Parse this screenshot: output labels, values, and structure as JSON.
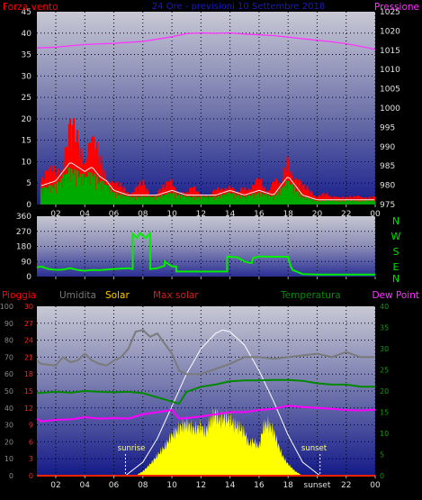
{
  "colors": {
    "wind": "#ff0000",
    "gust": "#ff0000",
    "wind_avg": "#00aa00",
    "pressure": "#ff33ff",
    "direction": "#00ee00",
    "rain": "#ff0000",
    "humidity": "#7a7a7a",
    "solar": "#ffff00",
    "max_solar": "#ffffff",
    "temperature": "#008800",
    "dewpoint": "#ff00ff",
    "grid": "#000000",
    "axis_text": "#d8d8d8"
  },
  "panel1": {
    "title": "24 Ore - previsioni 10 Settembre 2018",
    "left_label": "Forza vento",
    "right_label": "Pressione",
    "left_ticks": [
      "0",
      "5",
      "10",
      "15",
      "20",
      "25",
      "30",
      "35",
      "40",
      "45"
    ],
    "right_ticks": [
      "975",
      "980",
      "985",
      "990",
      "995",
      "1000",
      "1005",
      "1010",
      "1015",
      "1020",
      "1025"
    ],
    "x_ticks": [
      "02",
      "04",
      "06",
      "08",
      "10",
      "12",
      "14",
      "16",
      "18",
      "20",
      "22",
      "00"
    ]
  },
  "panel2": {
    "left_ticks": [
      "0",
      "90",
      "180",
      "270",
      "360"
    ],
    "compass_letters": [
      "N",
      "W",
      "S",
      "E",
      "N"
    ]
  },
  "panel3": {
    "labels": {
      "rain": "Pioggia",
      "humidity": "Umidita",
      "solar": "Solar",
      "max_solar": "Max solar",
      "temperature": "Temperatura",
      "dewpoint": "Dew Point"
    },
    "hum_ticks": [
      "0",
      "10",
      "20",
      "30",
      "40",
      "50",
      "60",
      "70",
      "80",
      "90",
      "100"
    ],
    "rain_ticks": [
      "0",
      "3",
      "6",
      "9",
      "12",
      "15",
      "18",
      "21",
      "24",
      "27",
      "30"
    ],
    "temp_ticks": [
      "0",
      "5",
      "10",
      "15",
      "20",
      "25",
      "30",
      "35",
      "40"
    ],
    "x_ticks": [
      "02",
      "04",
      "06",
      "08",
      "10",
      "12",
      "14",
      "16",
      "18",
      "sunset",
      "22",
      "00"
    ],
    "sunrise_label": "sunrise",
    "sunset_label": "sunset"
  },
  "chart_data": [
    {
      "type": "area",
      "title": "24 Ore - previsioni 10 Settembre 2018",
      "ylabel": "Forza vento",
      "ylabel_right": "Pressione",
      "x_unit": "hour",
      "xlim": [
        0.7,
        24
      ],
      "ylim": [
        0,
        45
      ],
      "ylim_right": [
        975,
        1025
      ],
      "grid": true,
      "series": [
        {
          "name": "Forza vento",
          "kind": "gust",
          "x": [
            1,
            2,
            2.5,
            3,
            3.3,
            3.6,
            4,
            4.4,
            4.8,
            5,
            5.5,
            6,
            6.5,
            7,
            7.5,
            8,
            8.5,
            9,
            9.5,
            10,
            10.5,
            11,
            11.5,
            12,
            12.5,
            13,
            13.5,
            14,
            14.5,
            15,
            15.5,
            16,
            16.5,
            17,
            17.5,
            18,
            18.5,
            19,
            19.5,
            20,
            20.5,
            21,
            21.5,
            22,
            22.5,
            23,
            23.5,
            24
          ],
          "values": [
            8,
            10,
            14,
            22,
            20,
            18,
            16,
            19,
            15,
            13,
            10,
            6,
            5,
            4,
            5,
            6,
            3,
            4,
            5,
            7,
            4,
            3,
            5,
            4,
            2,
            4,
            6,
            5,
            3,
            6,
            5,
            7,
            4,
            8,
            5,
            14,
            9,
            5,
            4,
            3,
            3,
            2,
            3,
            2,
            2,
            3,
            2,
            2
          ]
        },
        {
          "name": "",
          "kind": "avg",
          "x": [
            1,
            2,
            2.5,
            3,
            3.5,
            4,
            4.5,
            5,
            5.5,
            6,
            7,
            8,
            9,
            10,
            11,
            12,
            13,
            14,
            15,
            16,
            17,
            18,
            18.5,
            19,
            20,
            21,
            22,
            23,
            24
          ],
          "values": [
            4,
            5,
            7,
            9,
            8,
            7,
            8,
            6,
            5,
            3,
            2,
            2,
            2,
            3,
            2,
            2,
            2,
            3,
            2,
            3,
            2,
            6,
            4,
            2,
            1,
            1,
            1,
            1,
            1
          ]
        },
        {
          "name": "Pressione",
          "axis": "right",
          "x": [
            0.7,
            2,
            4,
            6,
            8,
            10,
            11,
            12,
            13,
            14,
            15,
            16,
            17,
            18,
            19,
            20,
            21,
            22,
            23,
            24
          ],
          "values": [
            1015.6,
            1015.8,
            1016.5,
            1016.8,
            1017.3,
            1018.5,
            1019.3,
            1019.5,
            1019.4,
            1019.5,
            1019.2,
            1019.0,
            1018.8,
            1018.4,
            1018.0,
            1017.6,
            1017.2,
            1016.7,
            1016.0,
            1015.2
          ]
        }
      ]
    },
    {
      "type": "line",
      "title": "",
      "x_unit": "hour",
      "xlim": [
        0.7,
        24
      ],
      "ylim": [
        0,
        360
      ],
      "series": [
        {
          "name": "",
          "x": [
            0.7,
            1,
            1.5,
            2,
            2.5,
            3,
            3.5,
            4,
            4.5,
            5,
            5.5,
            6,
            6.5,
            7,
            7.3,
            7.3,
            7.6,
            7.8,
            8.2,
            8.5,
            8.5,
            9,
            9.5,
            9.5,
            10,
            10.3,
            10.3,
            11,
            12,
            13,
            13.8,
            13.8,
            14.5,
            15,
            15.5,
            15.6,
            16,
            17,
            18,
            18.1,
            18.3,
            19,
            20,
            21,
            22,
            23,
            24
          ],
          "values": [
            55,
            60,
            45,
            40,
            42,
            50,
            40,
            35,
            40,
            38,
            42,
            45,
            48,
            50,
            45,
            255,
            230,
            260,
            230,
            260,
            45,
            50,
            65,
            90,
            60,
            60,
            30,
            30,
            30,
            30,
            30,
            120,
            115,
            90,
            80,
            110,
            120,
            118,
            118,
            80,
            40,
            15,
            12,
            12,
            12,
            12,
            12
          ]
        }
      ]
    },
    {
      "type": "line",
      "title": "",
      "ylabel": "Umidita",
      "ylabel_right": "Temperatura",
      "x_unit": "hour",
      "xlim": [
        0.7,
        24
      ],
      "ylim": [
        0,
        100
      ],
      "ylim_right": [
        0,
        40
      ],
      "ylim_rain": [
        0,
        30
      ],
      "grid": true,
      "series": [
        {
          "name": "Umidita",
          "axis": "left",
          "x": [
            0.7,
            1,
            2,
            2.5,
            3,
            3.5,
            4,
            4.5,
            5,
            5.5,
            6,
            6.5,
            7,
            7.5,
            8,
            8.5,
            9,
            9.5,
            10,
            10.5,
            11,
            11.5,
            12,
            13,
            14,
            15,
            16,
            17,
            18,
            19,
            20,
            21,
            22,
            23,
            24
          ],
          "values": [
            68,
            66,
            65,
            70,
            67,
            68,
            72,
            68,
            66,
            65,
            68,
            70,
            75,
            85,
            86,
            82,
            84,
            78,
            72,
            62,
            60,
            60,
            60,
            63,
            66,
            70,
            70,
            69,
            70,
            71,
            72,
            70,
            73,
            70,
            70
          ]
        },
        {
          "name": "Temperatura",
          "axis": "right",
          "x": [
            0.7,
            2,
            3,
            4,
            5,
            6,
            7,
            8,
            9,
            10,
            10.5,
            11,
            12,
            13,
            14,
            15,
            16,
            17,
            18,
            19,
            20,
            21,
            22,
            23,
            24
          ],
          "values": [
            19.5,
            19.8,
            19.6,
            20,
            19.8,
            19.7,
            19.8,
            19.5,
            18.5,
            17.5,
            17,
            19.8,
            21,
            21.5,
            22.3,
            22.5,
            22.5,
            22.6,
            22.6,
            22.4,
            21.8,
            21.5,
            21.5,
            21,
            21
          ]
        },
        {
          "name": "Dew Point",
          "axis": "right",
          "x": [
            0.7,
            1,
            2,
            3,
            4,
            5,
            6,
            7,
            8,
            9,
            10,
            10.5,
            11,
            12,
            13,
            14,
            15,
            16,
            17,
            18,
            19,
            20,
            21,
            22,
            23,
            24
          ],
          "values": [
            13.5,
            12.8,
            13.2,
            13.3,
            13.8,
            13.5,
            13.6,
            13.5,
            14.5,
            15,
            15.5,
            13.5,
            13.6,
            14,
            14.5,
            15,
            15,
            15.5,
            15.8,
            16.5,
            16.2,
            16,
            15.8,
            15.5,
            15.4,
            15.6
          ]
        },
        {
          "name": "Solar",
          "axis": "solar",
          "x": [
            7.5,
            8,
            8.5,
            9,
            9.5,
            10,
            10.5,
            11,
            11.5,
            12,
            12.3,
            12.6,
            13,
            13.3,
            13.6,
            14,
            14.3,
            14.6,
            15,
            15.3,
            15.6,
            16,
            16.3,
            16.6,
            17,
            17.3,
            17.6,
            18,
            18.5,
            19
          ],
          "values": [
            0,
            3,
            8,
            14,
            20,
            28,
            33,
            36,
            32,
            34,
            30,
            37,
            43,
            38,
            40,
            39,
            35,
            34,
            30,
            22,
            24,
            20,
            34,
            36,
            31,
            22,
            14,
            8,
            3,
            0
          ]
        },
        {
          "name": "Max solar",
          "axis": "solar",
          "x": [
            6.8,
            8,
            9,
            10,
            11,
            12,
            13,
            13.5,
            14,
            15,
            16,
            17,
            18,
            19,
            20.2
          ],
          "values": [
            0,
            8,
            22,
            41,
            60,
            75,
            84,
            86,
            85,
            77,
            62,
            44,
            24,
            8,
            0
          ]
        },
        {
          "name": "Pioggia",
          "axis": "rain",
          "x": [
            0.7,
            24
          ],
          "values": [
            0,
            0
          ]
        }
      ],
      "annotations": [
        {
          "text": "sunrise",
          "x": 6.8
        },
        {
          "text": "sunset",
          "x": 20.2
        }
      ]
    }
  ]
}
